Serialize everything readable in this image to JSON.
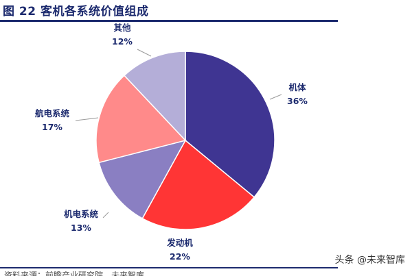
{
  "figure": {
    "title": "图 22 客机各系统价值组成",
    "source_text": "资料来源：前瞻产业研究院，未来智库",
    "watermark": "头条 @未来智库"
  },
  "chart_data": {
    "type": "pie",
    "title": "",
    "slices": [
      {
        "label": "机体",
        "value": 36,
        "value_text": "36%",
        "color": "#3f3592"
      },
      {
        "label": "发动机",
        "value": 22,
        "value_text": "22%",
        "color": "#ff3535"
      },
      {
        "label": "机电系统",
        "value": 13,
        "value_text": "13%",
        "color": "#8a7fc2"
      },
      {
        "label": "航电系统",
        "value": 17,
        "value_text": "17%",
        "color": "#ff8a8a"
      },
      {
        "label": "其他",
        "value": 12,
        "value_text": "12%",
        "color": "#b4aed8"
      }
    ]
  }
}
